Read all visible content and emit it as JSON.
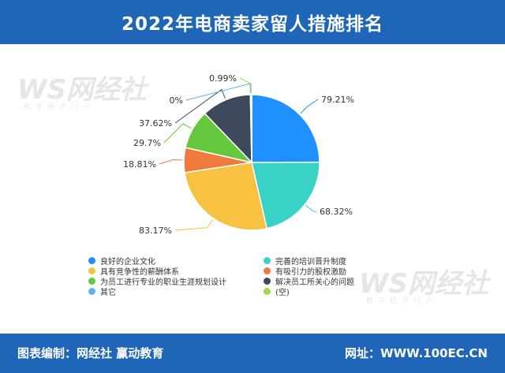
{
  "header": {
    "title": "2022年电商卖家留人措施排名"
  },
  "watermark": {
    "brand": "WS网经社",
    "sub": "数字经济门户"
  },
  "footer": {
    "left": "图表编制：网经社 赢动教育",
    "right": "网址：WWW.100EC.CN"
  },
  "colors": {
    "header_bg": "#1f66b8"
  },
  "chart_data": {
    "type": "pie",
    "title": "2022年电商卖家留人措施排名",
    "categories": [
      "良好的企业文化",
      "完善的培训晋升制度",
      "具有竞争性的薪酬体系",
      "有吸引力的股权激励",
      "为员工进行专业的职业生涯规划设计",
      "解决员工所关心的问题",
      "其它",
      "(空)"
    ],
    "values": [
      79.21,
      68.32,
      83.17,
      18.81,
      29.7,
      37.62,
      0,
      0.99
    ],
    "labels": [
      "79.21%",
      "68.32%",
      "83.17%",
      "18.81%",
      "29.7%",
      "37.62%",
      "0%",
      "0.99%"
    ],
    "colors": [
      "#1e90ff",
      "#3ad1c6",
      "#f7c242",
      "#f07a3c",
      "#64c83c",
      "#3c4a5c",
      "#5ab4e8",
      "#a6d84a"
    ],
    "legend_placement": "bottom"
  }
}
